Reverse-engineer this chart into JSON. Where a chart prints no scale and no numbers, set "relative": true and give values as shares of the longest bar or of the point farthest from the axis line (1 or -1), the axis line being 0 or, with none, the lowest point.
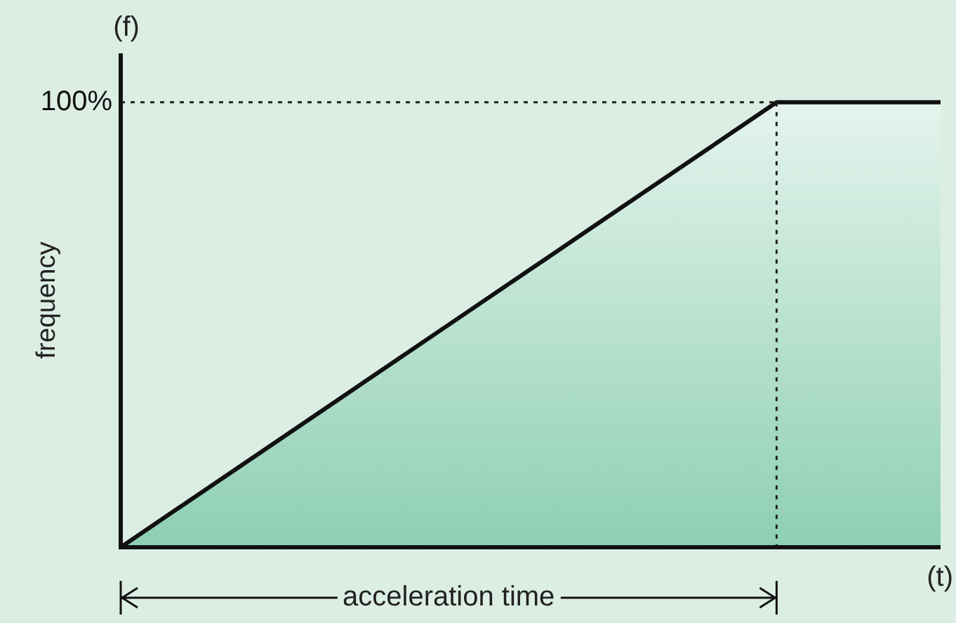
{
  "chart_data": {
    "type": "area",
    "relative": true,
    "ylabel": "frequency",
    "xlabel": "(t)",
    "annotations": [
      "(f)",
      "acceleration time"
    ],
    "categories": [
      null,
      null,
      null,
      null,
      null,
      null
    ],
    "series": [
      {
        "color": "#8ecfb3",
        "values": [
          0,
          0.25,
          0.5,
          0.75,
          1,
          1
        ]
      }
    ],
    "ref_lines": [
      {
        "axis": "y",
        "value": 1,
        "label": "100%",
        "line_style": "dotted",
        "color": "#222222"
      }
    ],
    "legend": false
  }
}
